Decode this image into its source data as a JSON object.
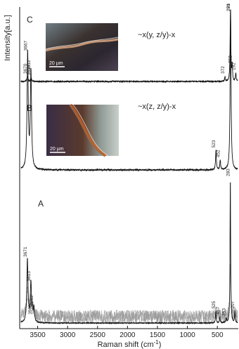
{
  "chart_data": {
    "type": "line",
    "xlabel": "Raman shift (cm",
    "xlabel_sup": "-1",
    "xlabel_close": ")",
    "ylabel": "Intensity[a.u.]",
    "xlim": [
      3800,
      150
    ],
    "x_reversed": true,
    "x_ticks": [
      3500,
      3000,
      2500,
      2000,
      1500,
      1000,
      500
    ],
    "x_tick_labels": [
      "3500",
      "3000",
      "2500",
      "2000",
      "1500",
      "1000",
      "500"
    ],
    "grid": false,
    "panels": [
      {
        "label": "C",
        "orientation": "~x(y, z/y)-x",
        "scale_bar": "20 µm",
        "line_color": "#111111",
        "peaks": [
          {
            "x": 3670,
            "label": "3670",
            "h": 0.07,
            "w": 10
          },
          {
            "x": 3610,
            "label": "3610",
            "h": 0.05,
            "w": 10
          },
          {
            "x": 372,
            "label": "372",
            "h": 0.07,
            "w": 6
          },
          {
            "x": 281,
            "label": "281",
            "h": 1.0,
            "w": 7
          },
          {
            "x": 252,
            "label": "252",
            "h": 0.22,
            "w": 7
          },
          {
            "x": 192,
            "label": "192",
            "h": 0.12,
            "w": 7
          }
        ]
      },
      {
        "label": "B",
        "orientation": "~x(z, z/y)-x",
        "scale_bar": "20 µm",
        "line_color": "#111111",
        "peaks": [
          {
            "x": 3667,
            "label": "3667",
            "h": 0.72,
            "w": 12
          },
          {
            "x": 3612,
            "label": "3612",
            "h": 0.6,
            "w": 12
          },
          {
            "x": 523,
            "label": "523",
            "h": 0.12,
            "w": 8
          },
          {
            "x": 452,
            "label": "452",
            "h": 0.06,
            "w": 8
          },
          {
            "x": 279,
            "label": "279",
            "h": 1.0,
            "w": 9
          }
        ]
      },
      {
        "label": "A",
        "line_color": "#111111",
        "background_color": "#9a9a9a",
        "peaks": [
          {
            "x": 3671,
            "label": "3671",
            "h": 0.44,
            "w": 12
          },
          {
            "x": 3613,
            "label": "3613",
            "h": 0.27,
            "w": 12
          },
          {
            "x": 3563,
            "label": "3563",
            "h": 0.1,
            "w": 12
          },
          {
            "x": 3590,
            "label": "3590",
            "h": 0.04,
            "w": 10
          },
          {
            "x": 525,
            "label": "525",
            "h": 0.08,
            "w": 7
          },
          {
            "x": 457,
            "label": "457",
            "h": 0.04,
            "w": 7
          },
          {
            "x": 353,
            "label": "353",
            "h": 0.03,
            "w": 7
          },
          {
            "x": 283,
            "label": "283",
            "h": 1.0,
            "w": 6
          },
          {
            "x": 207,
            "label": "207",
            "h": 0.08,
            "w": 6
          }
        ]
      }
    ]
  }
}
